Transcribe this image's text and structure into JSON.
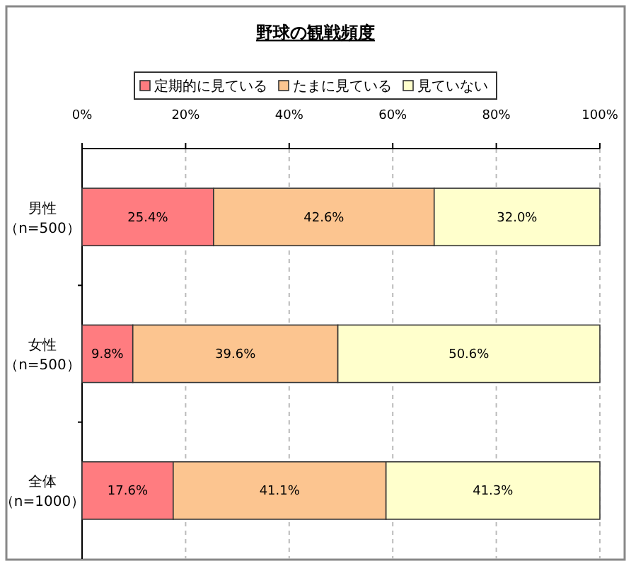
{
  "chart_data": {
    "type": "bar",
    "orientation": "horizontal",
    "stacked": true,
    "title": "野球の観戦頻度",
    "categories": [
      "男性（n=500）",
      "女性（n=500）",
      "全体（n=1000）"
    ],
    "series": [
      {
        "name": "定期的に見ている",
        "color": "#ff7c80",
        "values": [
          25.4,
          9.8,
          17.6
        ],
        "value_labels": [
          "25.4%",
          "9.8%",
          "17.6%"
        ]
      },
      {
        "name": "たまに見ている",
        "color": "#fcc590",
        "values": [
          42.6,
          39.6,
          41.1
        ],
        "value_labels": [
          "42.6%",
          "39.6%",
          "41.1%"
        ]
      },
      {
        "name": "見ていない",
        "color": "#ffffcc",
        "values": [
          32.0,
          50.6,
          41.3
        ],
        "value_labels": [
          "32.0%",
          "50.6%",
          "41.3%"
        ]
      }
    ],
    "xlim": [
      0,
      100
    ],
    "xticks": [
      {
        "value": 0,
        "label": "0%"
      },
      {
        "value": 20,
        "label": "20%"
      },
      {
        "value": 40,
        "label": "40%"
      },
      {
        "value": 60,
        "label": "60%"
      },
      {
        "value": 80,
        "label": "80%"
      },
      {
        "value": 100,
        "label": "100%"
      }
    ],
    "grid": "x",
    "legend": "top"
  }
}
